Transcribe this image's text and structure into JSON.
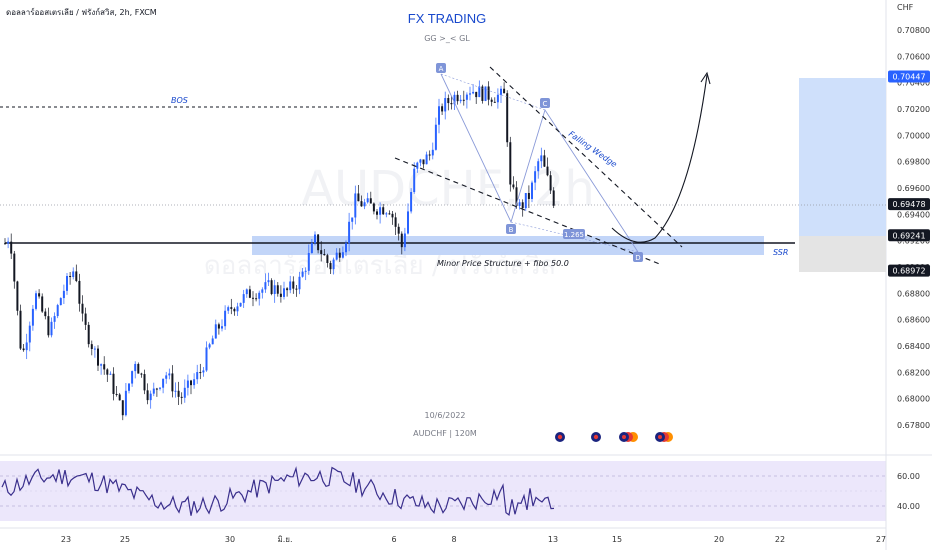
{
  "header": {
    "symbol_line": "ดอลลาร์ออสเตรเลีย / ฟรังก์สวิส, 2h, FXCM",
    "title": "FX TRADING",
    "subtitle": "GG >_< GL",
    "watermark_top": "AUDCHF, 2h",
    "watermark_bottom": "ดอลลาร์ออสเตรเลีย / ฟรังก์สวิส"
  },
  "footer": {
    "date": "10/6/2022",
    "instrument": "AUDCHF | 120M"
  },
  "annotations": {
    "bos": "BOS",
    "falling_wedge": "Falling Wedge",
    "ssr": "SSR",
    "zone_note": "Minor Price Structure + fibo 50.0",
    "fib_ratio": "1.265",
    "points": [
      "A",
      "B",
      "C",
      "D"
    ]
  },
  "price_axis": {
    "currency": "CHF",
    "ticks": [
      "0.70800",
      "0.70600",
      "0.70400",
      "0.70200",
      "0.70000",
      "0.69800",
      "0.69600",
      "0.69400",
      "0.69200",
      "0.69000",
      "0.68800",
      "0.68600",
      "0.68400",
      "0.68200",
      "0.68000",
      "0.67800"
    ],
    "badges": [
      {
        "label": "0.70447",
        "bg": "#2962ff",
        "fg": "#ffffff"
      },
      {
        "label": "0.69478",
        "bg": "#131722",
        "fg": "#ffffff"
      },
      {
        "label": "0.69241",
        "bg": "#131722",
        "fg": "#ffffff"
      },
      {
        "label": "0.68972",
        "bg": "#131722",
        "fg": "#ffffff"
      }
    ]
  },
  "time_axis": {
    "ticks": [
      "23",
      "25",
      "30",
      "มิ.ย.",
      "6",
      "8",
      "13",
      "15",
      "20",
      "22",
      "27"
    ]
  },
  "rsi_axis": {
    "ticks": [
      "60.00",
      "40.00"
    ]
  },
  "colors": {
    "up": "#2962ff",
    "down": "#131722",
    "zone": "#bbd0f7",
    "projection": "#cfe0fb",
    "grey_zone": "#e4e4e4",
    "rsi_line": "#3a2f8c",
    "rsi_band": "#ece7fb",
    "title": "#1848cc"
  },
  "chart_data": {
    "type": "candlestick",
    "symbol": "AUDCHF",
    "timeframe": "2h",
    "price_ylim": [
      0.677,
      0.709
    ],
    "approx_close_path": [
      {
        "x": "22",
        "close": 0.692
      },
      {
        "x": "23",
        "close": 0.689
      },
      {
        "x": "24",
        "close": 0.682
      },
      {
        "x": "25",
        "close": 0.6795
      },
      {
        "x": "26",
        "close": 0.6805
      },
      {
        "x": "27",
        "close": 0.681
      },
      {
        "x": "30",
        "close": 0.684
      },
      {
        "x": "31",
        "close": 0.688
      },
      {
        "x": "มิ.ย.",
        "close": 0.689
      },
      {
        "x": "2",
        "close": 0.6905
      },
      {
        "x": "3",
        "close": 0.694
      },
      {
        "x": "6",
        "close": 0.6935
      },
      {
        "x": "7",
        "close": 0.6995
      },
      {
        "x": "8",
        "close": 0.7035
      },
      {
        "x": "9",
        "close": 0.703
      },
      {
        "x": "10",
        "close": 0.695
      },
      {
        "x": "13",
        "close": 0.6947
      }
    ],
    "levels": {
      "bos": 0.7022,
      "support_line": 0.6917,
      "zone": [
        0.691,
        0.6928
      ],
      "projection_box": [
        0.6902,
        0.7045
      ]
    },
    "rsi": {
      "ylim": [
        20,
        80
      ],
      "ticks": [
        60,
        40
      ],
      "last": 43
    }
  }
}
